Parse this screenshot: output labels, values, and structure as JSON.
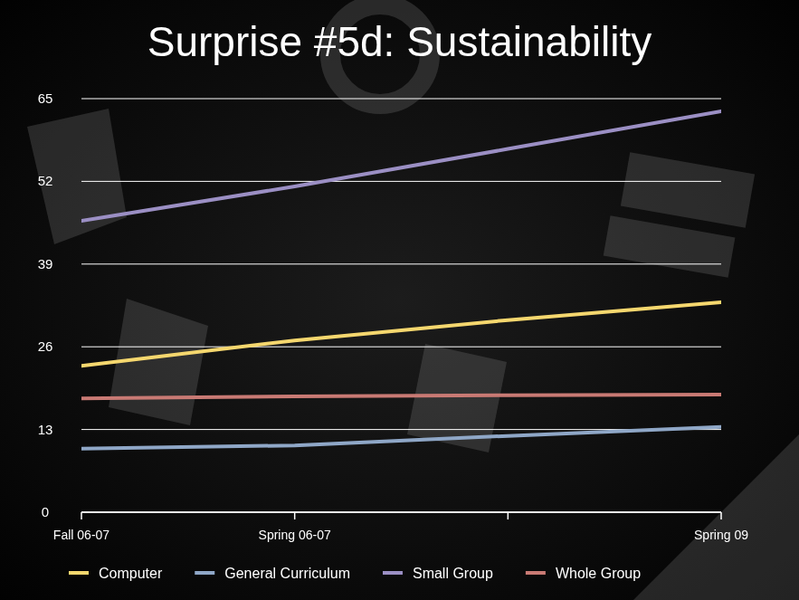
{
  "chart_data": {
    "type": "line",
    "title": "Surprise #5d: Sustainability",
    "categories": [
      "Fall 06-07",
      "Spring 06-07",
      null,
      "Spring 09"
    ],
    "series": [
      {
        "name": "Computer",
        "color": "#f5d76e",
        "values": [
          23.0,
          27.0,
          30.2,
          33.0
        ]
      },
      {
        "name": "General Curriculum",
        "color": "#8fa7c7",
        "values": [
          10.0,
          10.5,
          12.0,
          13.4
        ]
      },
      {
        "name": "Small Group",
        "color": "#9b8fc4",
        "values": [
          45.8,
          51.2,
          57.1,
          63.0
        ]
      },
      {
        "name": "Whole Group",
        "color": "#c97a74",
        "values": [
          17.9,
          18.2,
          18.4,
          18.5
        ]
      }
    ],
    "ylim": [
      0,
      65
    ],
    "yticks": [
      0,
      13,
      26,
      39,
      52,
      65
    ],
    "grid": true,
    "legend": "bottom"
  }
}
